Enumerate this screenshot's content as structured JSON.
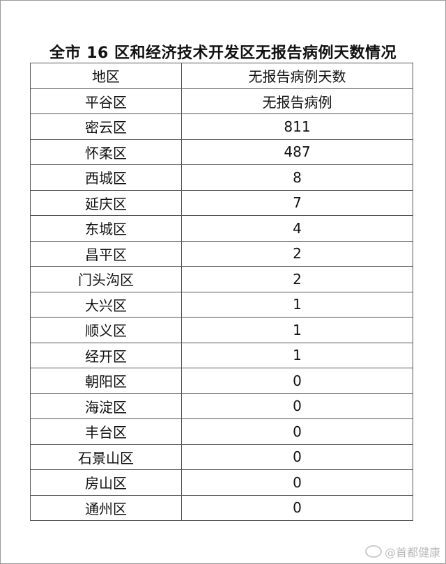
{
  "title": "全市 16 区和经济技术开发区无报告病例天数情况",
  "table": {
    "headers": [
      "地区",
      "无报告病例天数"
    ],
    "rows": [
      [
        "平谷区",
        "无报告病例"
      ],
      [
        "密云区",
        "811"
      ],
      [
        "怀柔区",
        "487"
      ],
      [
        "西城区",
        "8"
      ],
      [
        "延庆区",
        "7"
      ],
      [
        "东城区",
        "4"
      ],
      [
        "昌平区",
        "2"
      ],
      [
        "门头沟区",
        "2"
      ],
      [
        "大兴区",
        "1"
      ],
      [
        "顺义区",
        "1"
      ],
      [
        "经开区",
        "1"
      ],
      [
        "朝阳区",
        "0"
      ],
      [
        "海淀区",
        "0"
      ],
      [
        "丰台区",
        "0"
      ],
      [
        "石景山区",
        "0"
      ],
      [
        "房山区",
        "0"
      ],
      [
        "通州区",
        "0"
      ]
    ]
  },
  "watermark": {
    "icon": "weibo-icon",
    "text": "@首都健康"
  }
}
